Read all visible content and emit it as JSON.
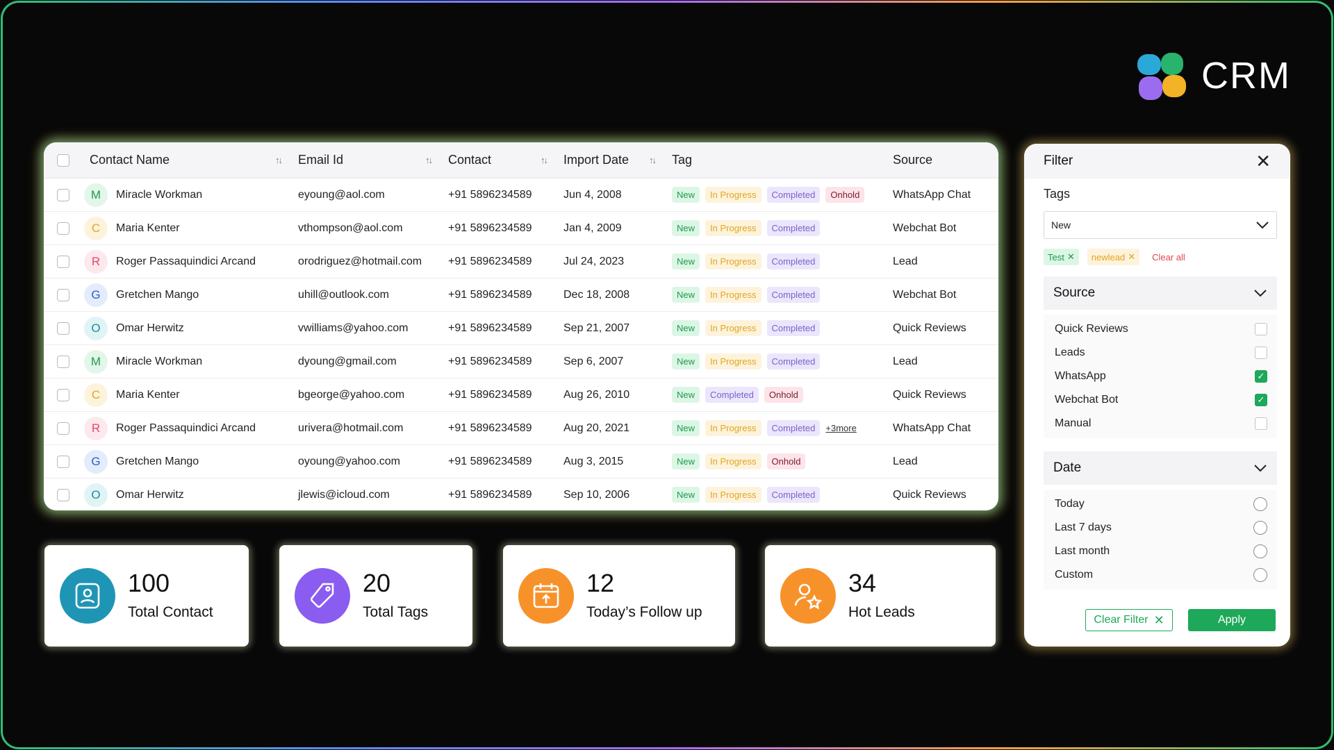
{
  "brand": {
    "name": "CRM"
  },
  "colors": {
    "accent_green": "#1ea85a",
    "tag_new": "#1e9a4f",
    "tag_in_progress": "#e1a520",
    "tag_completed": "#7a62cc",
    "tag_onhold": "#7a1b2a",
    "stat_contact": "#1f95b5",
    "stat_tags": "#8a5cf0",
    "stat_followup": "#f7922b",
    "stat_hot": "#f7922b"
  },
  "table": {
    "columns": {
      "name": "Contact Name",
      "email": "Email Id",
      "contact": "Contact",
      "date": "Import Date",
      "tag": "Tag",
      "source": "Source"
    },
    "rows": [
      {
        "initial": "M",
        "avatar_color": "green",
        "name": "Miracle Workman",
        "email": "eyoung@aol.com",
        "contact": "+91 5896234589",
        "date": "Jun 4, 2008",
        "tags": [
          "New",
          "In Progress",
          "Completed",
          "Onhold"
        ],
        "source": "WhatsApp Chat"
      },
      {
        "initial": "C",
        "avatar_color": "yellow",
        "name": "Maria Kenter",
        "email": "vthompson@aol.com",
        "contact": "+91 5896234589",
        "date": "Jan 4, 2009",
        "tags": [
          "New",
          "In Progress",
          "Completed"
        ],
        "source": "Webchat Bot"
      },
      {
        "initial": "R",
        "avatar_color": "pink",
        "name": "Roger Passaquindici Arcand",
        "email": "orodriguez@hotmail.com",
        "contact": "+91 5896234589",
        "date": "Jul 24, 2023",
        "tags": [
          "New",
          "In Progress",
          "Completed"
        ],
        "source": "Lead"
      },
      {
        "initial": "G",
        "avatar_color": "blue",
        "name": "Gretchen Mango",
        "email": "uhill@outlook.com",
        "contact": "+91 5896234589",
        "date": "Dec 18, 2008",
        "tags": [
          "New",
          "In Progress",
          "Completed"
        ],
        "source": "Webchat Bot"
      },
      {
        "initial": "O",
        "avatar_color": "teal",
        "name": "Omar Herwitz",
        "email": "vwilliams@yahoo.com",
        "contact": "+91 5896234589",
        "date": "Sep 21, 2007",
        "tags": [
          "New",
          "In Progress",
          "Completed"
        ],
        "source": "Quick Reviews"
      },
      {
        "initial": "M",
        "avatar_color": "green",
        "name": "Miracle Workman",
        "email": "dyoung@gmail.com",
        "contact": "+91 5896234589",
        "date": "Sep 6, 2007",
        "tags": [
          "New",
          "In Progress",
          "Completed"
        ],
        "source": "Lead"
      },
      {
        "initial": "C",
        "avatar_color": "yellow",
        "name": "Maria Kenter",
        "email": "bgeorge@yahoo.com",
        "contact": "+91 5896234589",
        "date": "Aug 26, 2010",
        "tags": [
          "New",
          "Completed",
          "Onhold"
        ],
        "source": "Quick Reviews"
      },
      {
        "initial": "R",
        "avatar_color": "pink",
        "name": "Roger Passaquindici Arcand",
        "email": "urivera@hotmail.com",
        "contact": "+91 5896234589",
        "date": "Aug 20, 2021",
        "tags": [
          "New",
          "In Progress",
          "Completed"
        ],
        "more": "+3more",
        "source": "WhatsApp Chat"
      },
      {
        "initial": "G",
        "avatar_color": "blue",
        "name": "Gretchen Mango",
        "email": "oyoung@yahoo.com",
        "contact": "+91 5896234589",
        "date": "Aug 3, 2015",
        "tags": [
          "New",
          "In Progress",
          "Onhold"
        ],
        "source": "Lead"
      },
      {
        "initial": "O",
        "avatar_color": "teal",
        "name": "Omar Herwitz",
        "email": "jlewis@icloud.com",
        "contact": "+91 5896234589",
        "date": "Sep 10, 2006",
        "tags": [
          "New",
          "In Progress",
          "Completed"
        ],
        "source": "Quick Reviews"
      }
    ]
  },
  "stats": [
    {
      "value": "100",
      "label": "Total Contact",
      "icon": "contact-card-icon"
    },
    {
      "value": "20",
      "label": "Total Tags",
      "icon": "tag-icon"
    },
    {
      "value": "12",
      "label": "Today’s Follow up",
      "icon": "calendar-icon"
    },
    {
      "value": "34",
      "label": "Hot Leads",
      "icon": "user-star-icon"
    }
  ],
  "filter": {
    "title": "Filter",
    "tags_label": "Tags",
    "tags_select_value": "New",
    "chips": [
      "Test",
      "newlead"
    ],
    "clear_all": "Clear all",
    "source": {
      "label": "Source",
      "options": [
        {
          "label": "Quick Reviews",
          "checked": false
        },
        {
          "label": "Leads",
          "checked": false
        },
        {
          "label": "WhatsApp",
          "checked": true
        },
        {
          "label": "Webchat Bot",
          "checked": true
        },
        {
          "label": "Manual",
          "checked": false
        }
      ]
    },
    "date": {
      "label": "Date",
      "options": [
        "Today",
        "Last 7 days",
        "Last month",
        "Custom"
      ]
    },
    "clear_filter": "Clear Filter",
    "apply": "Apply"
  }
}
